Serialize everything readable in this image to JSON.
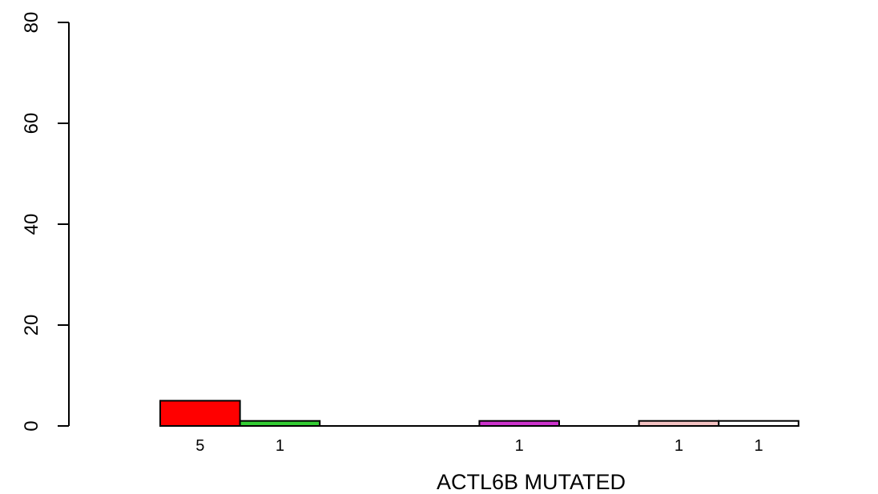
{
  "chart_data": {
    "type": "bar",
    "title": "",
    "xlabel": "ACTL6B MUTATED",
    "ylabel": "",
    "ylim": [
      0,
      80
    ],
    "yticks": [
      0,
      20,
      40,
      60,
      80
    ],
    "grid": false,
    "legend": "none",
    "bars": [
      {
        "value": 5,
        "label": "5",
        "color": "#FF0000"
      },
      {
        "value": 1,
        "label": "1",
        "color": "#33CC33"
      },
      {
        "value": 0,
        "label": "",
        "color": "#0000FF"
      },
      {
        "value": 0,
        "label": "",
        "color": "#00CCCC"
      },
      {
        "value": 1,
        "label": "1",
        "color": "#CC33CC"
      },
      {
        "value": 0,
        "label": "",
        "color": "#CCCC00"
      },
      {
        "value": 1,
        "label": "1",
        "color": "#F4C2C2"
      },
      {
        "value": 1,
        "label": "1",
        "color": "#FFFFFF"
      }
    ]
  }
}
